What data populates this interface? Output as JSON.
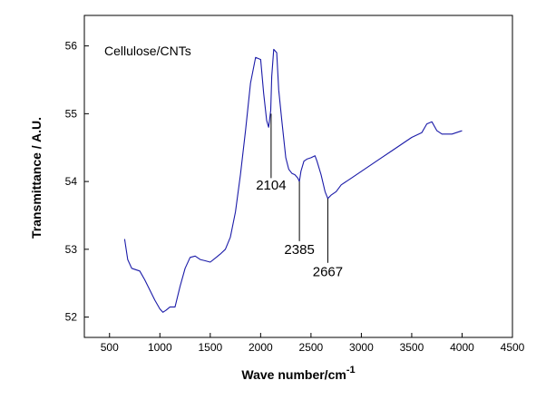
{
  "chart_data": {
    "type": "line",
    "title": "",
    "sample_label": "Cellulose/CNTs",
    "xlabel": "Wave number/cm",
    "xlabel_superscript": "-1",
    "ylabel": "Transmittance / A.U.",
    "xlim": [
      250,
      4500
    ],
    "ylim": [
      51.7,
      56.45
    ],
    "grid": false,
    "legend": "none",
    "x_ticks": [
      {
        "value": 500,
        "label": "500"
      },
      {
        "value": 1000,
        "label": "1000"
      },
      {
        "value": 1500,
        "label": "1500"
      },
      {
        "value": 2000,
        "label": "2000"
      },
      {
        "value": 2500,
        "label": "2500"
      },
      {
        "value": 3000,
        "label": "3000"
      },
      {
        "value": 3500,
        "label": "3500"
      },
      {
        "value": 4000,
        "label": "4000"
      },
      {
        "value": 4500,
        "label": "4500"
      }
    ],
    "y_ticks": [
      {
        "value": 52,
        "label": "52"
      },
      {
        "value": 53,
        "label": "53"
      },
      {
        "value": 54,
        "label": "54"
      },
      {
        "value": 55,
        "label": "55"
      },
      {
        "value": 56,
        "label": "56"
      }
    ],
    "series": [
      {
        "color": "#1a1aa8",
        "x": [
          650,
          680,
          720,
          760,
          800,
          850,
          900,
          950,
          1000,
          1030,
          1060,
          1100,
          1150,
          1200,
          1250,
          1300,
          1350,
          1400,
          1450,
          1500,
          1550,
          1600,
          1650,
          1700,
          1750,
          1800,
          1850,
          1900,
          1950,
          2000,
          2030,
          2060,
          2080,
          2100,
          2110,
          2130,
          2160,
          2180,
          2210,
          2250,
          2280,
          2310,
          2340,
          2370,
          2385,
          2400,
          2430,
          2460,
          2500,
          2540,
          2560,
          2600,
          2640,
          2667,
          2700,
          2750,
          2800,
          2900,
          3000,
          3100,
          3200,
          3300,
          3400,
          3500,
          3600,
          3650,
          3700,
          3750,
          3800,
          3900,
          4000
        ],
        "y": [
          53.15,
          52.85,
          52.72,
          52.7,
          52.68,
          52.55,
          52.4,
          52.25,
          52.12,
          52.07,
          52.1,
          52.15,
          52.15,
          52.45,
          52.72,
          52.88,
          52.9,
          52.85,
          52.83,
          52.81,
          52.87,
          52.93,
          53.0,
          53.18,
          53.55,
          54.1,
          54.75,
          55.45,
          55.83,
          55.8,
          55.3,
          54.9,
          54.8,
          55.05,
          55.55,
          55.95,
          55.9,
          55.35,
          54.9,
          54.35,
          54.18,
          54.12,
          54.1,
          54.05,
          54.0,
          54.15,
          54.3,
          54.33,
          54.35,
          54.38,
          54.3,
          54.1,
          53.85,
          53.75,
          53.8,
          53.85,
          53.95,
          54.05,
          54.15,
          54.25,
          54.35,
          54.45,
          54.55,
          54.65,
          54.72,
          54.85,
          54.88,
          54.75,
          54.7,
          54.7,
          54.75
        ]
      }
    ],
    "annotations": [
      {
        "label": "2104",
        "x": 2104,
        "y_line_top": 55.0,
        "y_line_bottom": 54.05,
        "y_text": 53.95
      },
      {
        "label": "2385",
        "x": 2385,
        "y_line_top": 54.0,
        "y_line_bottom": 53.12,
        "y_text": 53.0
      },
      {
        "label": "2667",
        "x": 2667,
        "y_line_top": 53.75,
        "y_line_bottom": 52.8,
        "y_text": 52.67
      }
    ]
  }
}
